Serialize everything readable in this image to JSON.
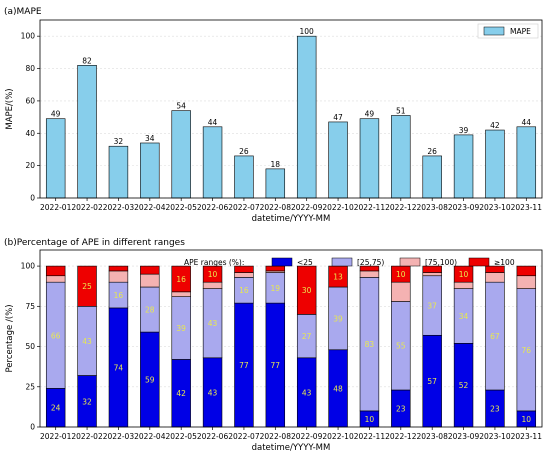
{
  "chart_data": [
    {
      "type": "bar",
      "title": "(a)MAPE",
      "xlabel": "datetime/YYYY-MM",
      "ylabel": "MAPE/(%)",
      "ylim": [
        0,
        110
      ],
      "yticks": [
        "0",
        "20",
        "40",
        "60",
        "80",
        "100"
      ],
      "categories": [
        "2022-01",
        "2022-02",
        "2022-03",
        "2022-04",
        "2022-05",
        "2022-06",
        "2022-07",
        "2022-08",
        "2022-09",
        "2022-10",
        "2022-11",
        "2022-12",
        "2023-08",
        "2023-09",
        "2023-10",
        "2023-11"
      ],
      "series": [
        {
          "name": "MAPE",
          "color": "#87ceeb",
          "values": [
            49,
            82,
            32,
            34,
            54,
            44,
            26,
            18,
            100,
            47,
            49,
            51,
            26,
            39,
            42,
            44
          ]
        }
      ],
      "data_labels": [
        "49",
        "82",
        "32",
        "34",
        "54",
        "44",
        "26",
        "18",
        "100",
        "47",
        "49",
        "51",
        "26",
        "39",
        "42",
        "44"
      ],
      "legend_position": "top-right",
      "grid": true
    },
    {
      "type": "bar",
      "stacked": true,
      "title": "(b)Percentage of APE in different ranges",
      "xlabel": "datetime/YYYY-MM",
      "ylabel": "Percentage /(%)",
      "ylim": [
        0,
        110
      ],
      "yticks": [
        "0",
        "25",
        "50",
        "75",
        "100"
      ],
      "legend_title": "APE ranges (%):",
      "legend_position": "top",
      "grid": true,
      "categories": [
        "2022-01",
        "2022-02",
        "2022-03",
        "2022-04",
        "2022-05",
        "2022-06",
        "2022-07",
        "2022-08",
        "2022-09",
        "2022-10",
        "2022-11",
        "2022-12",
        "2023-08",
        "2023-09",
        "2023-10",
        "2023-11"
      ],
      "series": [
        {
          "name": "<25",
          "color": "#0000e6",
          "values": [
            24,
            32,
            74,
            59,
            42,
            43,
            77,
            77,
            43,
            48,
            10,
            23,
            57,
            52,
            23,
            10
          ],
          "labels": [
            "24",
            "32",
            "74",
            "59",
            "42",
            "43",
            "77",
            "77",
            "43",
            "48",
            "10",
            "23",
            "57",
            "52",
            "23",
            "10"
          ]
        },
        {
          "name": "[25,75)",
          "color": "#a9a9ee",
          "values": [
            66,
            43,
            16,
            28,
            39,
            43,
            16,
            19,
            27,
            39,
            83,
            55,
            37,
            34,
            67,
            76
          ],
          "labels": [
            "66",
            "43",
            "16",
            "28",
            "39",
            "43",
            "16",
            "19",
            "27",
            "39",
            "83",
            "55",
            "37",
            "34",
            "67",
            "76"
          ]
        },
        {
          "name": "[75,100)",
          "color": "#f4b2b2",
          "values": [
            4,
            0,
            7,
            8,
            3,
            4,
            3,
            1,
            0,
            0,
            4,
            12,
            2,
            4,
            6,
            8
          ],
          "labels": [
            "",
            "",
            "",
            "",
            "",
            "",
            "",
            "",
            "",
            "",
            "",
            "",
            "",
            "",
            "",
            ""
          ]
        },
        {
          "name": "≥100",
          "color": "#ee0000",
          "values": [
            6,
            25,
            3,
            5,
            16,
            10,
            4,
            3,
            30,
            13,
            3,
            10,
            4,
            10,
            4,
            6
          ],
          "labels": [
            "",
            "25",
            "",
            "",
            "16",
            "10",
            "",
            "",
            "30",
            "13",
            "",
            "10",
            "",
            "10",
            "",
            ""
          ]
        }
      ]
    }
  ]
}
